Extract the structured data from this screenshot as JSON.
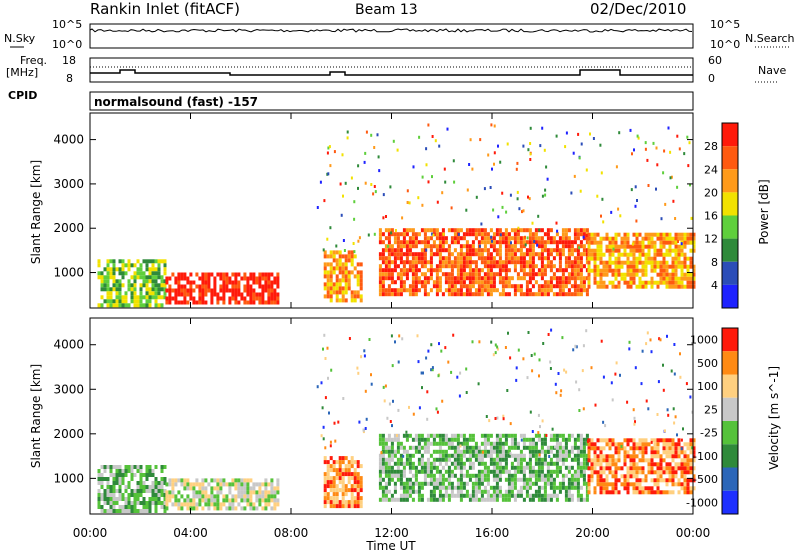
{
  "header": {
    "station": "Rankin Inlet (fitACF)",
    "beam": "Beam 13",
    "date": "02/Dec/2010"
  },
  "top_panels": {
    "nsky_label": "N.Sky",
    "nsearch_label": "N.Search",
    "nsky_ticks": [
      "10^5",
      "10^0"
    ],
    "nsearch_ticks": [
      "10^5",
      "10^0"
    ],
    "freq_label": "Freq.",
    "freq_unit": "[MHz]",
    "freq_ticks": [
      "18",
      "8"
    ],
    "nave_label": "Nave",
    "nave_ticks": [
      "60",
      "0"
    ],
    "cpid_label": "CPID",
    "cpid_text": "normalsound (fast) -157"
  },
  "chart_data": [
    {
      "type": "heatmap",
      "name": "power",
      "ylabel": "Slant Range [km]",
      "yticks": [
        "1000",
        "2000",
        "3000",
        "4000"
      ],
      "ylim": [
        200,
        4600
      ],
      "xlim_hours": [
        0,
        24
      ],
      "colorbar_label": "Power [dB]",
      "colorbar_ticks": [
        "4",
        "8",
        "12",
        "16",
        "20",
        "24",
        "28"
      ],
      "colorbar_colors": [
        "#1e22ff",
        "#2b4db8",
        "#2f8a3a",
        "#5fcf3c",
        "#f2e200",
        "#ff9a1a",
        "#ff5a10",
        "#ff1a0a"
      ],
      "regions": [
        {
          "t0": 0.3,
          "t1": 3.0,
          "r0": 300,
          "r1": 1300,
          "level": 3
        },
        {
          "t0": 3.0,
          "t1": 7.5,
          "r0": 300,
          "r1": 1000,
          "level": 7
        },
        {
          "t0": 9.3,
          "t1": 10.8,
          "r0": 400,
          "r1": 1500,
          "level": 5
        },
        {
          "t0": 11.5,
          "t1": 19.8,
          "r0": 500,
          "r1": 2000,
          "level": 6
        },
        {
          "t0": 19.8,
          "t1": 24.0,
          "r0": 700,
          "r1": 1900,
          "level": 5
        }
      ]
    },
    {
      "type": "heatmap",
      "name": "velocity",
      "ylabel": "Slant Range [km]",
      "yticks": [
        "1000",
        "2000",
        "3000",
        "4000"
      ],
      "ylim": [
        200,
        4600
      ],
      "xlim_hours": [
        0,
        24
      ],
      "colorbar_label": "Velocity [m s^-1]",
      "colorbar_ticks": [
        "1000",
        "500",
        "100",
        "25",
        "-25",
        "-100",
        "-500",
        "-1000"
      ],
      "colorbar_colors": [
        "#1e30ff",
        "#2b66b8",
        "#2f8a3a",
        "#55c23a",
        "#c8c8c8",
        "#ffd080",
        "#ff8a14",
        "#ff1a0a"
      ],
      "regions": [
        {
          "t0": 0.3,
          "t1": 3.0,
          "r0": 300,
          "r1": 1300,
          "level": 3
        },
        {
          "t0": 3.0,
          "t1": 7.5,
          "r0": 300,
          "r1": 1000,
          "level": 4
        },
        {
          "t0": 9.3,
          "t1": 10.8,
          "r0": 400,
          "r1": 1500,
          "level": 6
        },
        {
          "t0": 11.5,
          "t1": 19.8,
          "r0": 500,
          "r1": 2000,
          "level": 3
        },
        {
          "t0": 19.8,
          "t1": 24.0,
          "r0": 700,
          "r1": 1900,
          "level": 6
        }
      ]
    }
  ],
  "xaxis": {
    "ticks": [
      "00:00",
      "04:00",
      "08:00",
      "12:00",
      "16:00",
      "20:00",
      "00:00"
    ],
    "label": "Time UT"
  }
}
